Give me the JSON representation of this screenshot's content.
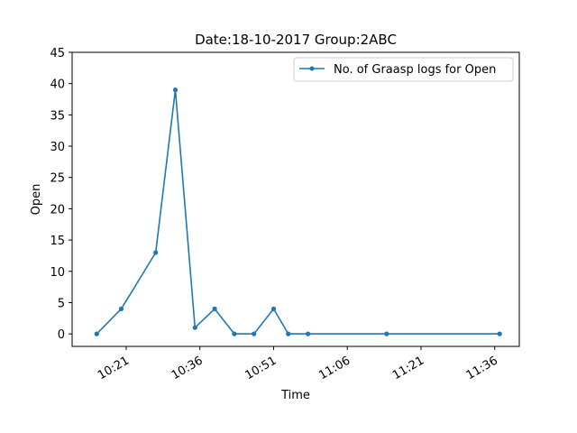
{
  "chart_data": {
    "type": "line",
    "title": "Date:18-10-2017  Group:2ABC",
    "xlabel": "Time",
    "ylabel": "Open",
    "x_ticks": [
      "10:21",
      "10:36",
      "10:51",
      "11:06",
      "11:21",
      "11:36"
    ],
    "y_ticks": [
      "0",
      "5",
      "10",
      "15",
      "20",
      "25",
      "30",
      "35",
      "40",
      "45"
    ],
    "ylim": [
      -2.0,
      45
    ],
    "xlim": [
      "10:10",
      "11:41"
    ],
    "grid": false,
    "legend_position": "top-right",
    "series": [
      {
        "name": "No. of Graasp logs for Open",
        "color": "#1f77b4",
        "x": [
          "10:15",
          "10:20",
          "10:27",
          "10:31",
          "10:35",
          "10:39",
          "10:43",
          "10:47",
          "10:51",
          "10:54",
          "10:58",
          "11:14",
          "11:37"
        ],
        "values": [
          0,
          4,
          13,
          39,
          1,
          4,
          0,
          0,
          4,
          0,
          0,
          0,
          0
        ]
      }
    ]
  }
}
